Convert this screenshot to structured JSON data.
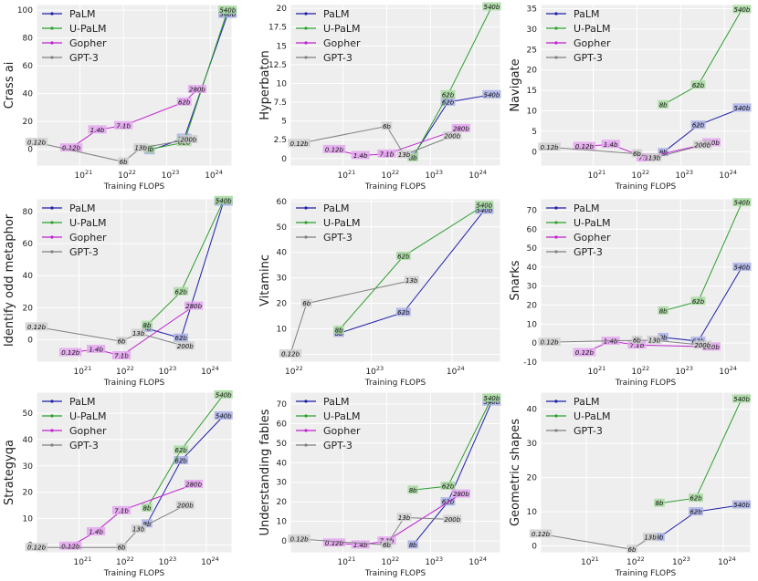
{
  "colors": {
    "PaLM": "#1f1fa8",
    "U-PaLM": "#2ca02c",
    "Gopher": "#c020d0",
    "GPT-3": "#808080"
  },
  "chart_data": [
    {
      "type": "line",
      "title": "",
      "ylabel": "Crass ai",
      "xlabel": "Training FLOPS",
      "xlim_log10": [
        20,
        24.5
      ],
      "ylim": [
        -12,
        104
      ],
      "yticks": [
        0,
        20,
        40,
        60,
        80,
        100
      ],
      "xticks_exp": [
        21,
        22,
        23,
        24
      ],
      "series": [
        {
          "name": "PaLM",
          "points": [
            {
              "x": 22.6,
              "y": -1,
              "label": "8b"
            },
            {
              "x": 23.4,
              "y": 8,
              "label": "62b"
            },
            {
              "x": 24.4,
              "y": 97,
              "label": "540b"
            }
          ]
        },
        {
          "name": "U-PaLM",
          "points": [
            {
              "x": 22.6,
              "y": 0,
              "label": "8b"
            },
            {
              "x": 23.4,
              "y": 5,
              "label": "62b"
            },
            {
              "x": 24.4,
              "y": 100,
              "label": "540b"
            }
          ]
        },
        {
          "name": "Gopher",
          "points": [
            {
              "x": 20.8,
              "y": 1,
              "label": "0.12b"
            },
            {
              "x": 21.4,
              "y": 14,
              "label": "1.4b"
            },
            {
              "x": 22.0,
              "y": 17,
              "label": "7.1b"
            },
            {
              "x": 23.4,
              "y": 34,
              "label": "62b"
            },
            {
              "x": 23.7,
              "y": 43,
              "label": "280b"
            }
          ]
        },
        {
          "name": "GPT-3",
          "points": [
            {
              "x": 20.0,
              "y": 5,
              "label": "0.12b"
            },
            {
              "x": 22.0,
              "y": -9,
              "label": "6b"
            },
            {
              "x": 22.4,
              "y": 1,
              "label": "13b"
            },
            {
              "x": 23.5,
              "y": 7,
              "label": "200b"
            }
          ]
        }
      ]
    },
    {
      "type": "line",
      "title": "",
      "ylabel": "Hyperbaton",
      "xlabel": "Training FLOPS",
      "xlim_log10": [
        19.8,
        24.6
      ],
      "ylim": [
        -1,
        20.5
      ],
      "yticks": [
        0.0,
        2.5,
        5.0,
        7.5,
        10.0,
        12.5,
        15.0,
        17.5,
        20.0
      ],
      "xticks_exp": [
        21,
        22,
        23,
        24
      ],
      "series": [
        {
          "name": "PaLM",
          "points": [
            {
              "x": 22.6,
              "y": 0.3,
              "label": "8b"
            },
            {
              "x": 23.4,
              "y": 7.5,
              "label": "62b"
            },
            {
              "x": 24.4,
              "y": 8.5,
              "label": "540b"
            }
          ]
        },
        {
          "name": "U-PaLM",
          "points": [
            {
              "x": 22.6,
              "y": 0.1,
              "label": "8b"
            },
            {
              "x": 23.4,
              "y": 8.5,
              "label": "62b"
            },
            {
              "x": 24.4,
              "y": 20.2,
              "label": "540b"
            }
          ]
        },
        {
          "name": "Gopher",
          "points": [
            {
              "x": 20.8,
              "y": 1.2,
              "label": "0.12b"
            },
            {
              "x": 21.4,
              "y": 0.4,
              "label": "1.4b"
            },
            {
              "x": 22.0,
              "y": 0.6,
              "label": "7.1b"
            },
            {
              "x": 23.7,
              "y": 4.0,
              "label": "280b"
            }
          ]
        },
        {
          "name": "GPT-3",
          "points": [
            {
              "x": 20.0,
              "y": 2.0,
              "label": "0.12b"
            },
            {
              "x": 22.0,
              "y": 4.3,
              "label": "6b"
            },
            {
              "x": 22.4,
              "y": 0.5,
              "label": "13b"
            },
            {
              "x": 23.5,
              "y": 3.0,
              "label": "200b"
            }
          ]
        }
      ]
    },
    {
      "type": "line",
      "title": "",
      "ylabel": "Navigate",
      "xlabel": "Training FLOPS",
      "xlim_log10": [
        19.8,
        24.6
      ],
      "ylim": [
        -3.5,
        36
      ],
      "yticks": [
        0,
        5,
        10,
        15,
        20,
        25,
        30,
        35
      ],
      "xticks_exp": [
        21,
        22,
        23,
        24
      ],
      "series": [
        {
          "name": "PaLM",
          "points": [
            {
              "x": 22.6,
              "y": -0.2,
              "label": "8b"
            },
            {
              "x": 23.4,
              "y": 6.5,
              "label": "62b"
            },
            {
              "x": 24.4,
              "y": 10.7,
              "label": "540b"
            }
          ]
        },
        {
          "name": "U-PaLM",
          "points": [
            {
              "x": 22.6,
              "y": 11.5,
              "label": "8b"
            },
            {
              "x": 23.4,
              "y": 16.3,
              "label": "62b"
            },
            {
              "x": 24.4,
              "y": 34.8,
              "label": "540b"
            }
          ]
        },
        {
          "name": "Gopher",
          "points": [
            {
              "x": 20.8,
              "y": 1.3,
              "label": "0.12b"
            },
            {
              "x": 21.4,
              "y": 1.8,
              "label": "1.4b"
            },
            {
              "x": 22.2,
              "y": -1.5,
              "label": "7.1b"
            },
            {
              "x": 23.7,
              "y": 2.2,
              "label": "280b"
            }
          ]
        },
        {
          "name": "GPT-3",
          "points": [
            {
              "x": 20.0,
              "y": 1.1,
              "label": "0.12b"
            },
            {
              "x": 22.0,
              "y": -0.5,
              "label": "6b"
            },
            {
              "x": 22.4,
              "y": -1.5,
              "label": "13b"
            },
            {
              "x": 23.5,
              "y": 1.6,
              "label": "200b"
            }
          ]
        }
      ]
    },
    {
      "type": "line",
      "title": "",
      "ylabel": "Identify odd metaphor",
      "xlabel": "Training FLOPS",
      "xlim_log10": [
        20.0,
        24.6
      ],
      "ylim": [
        -14,
        88
      ],
      "yticks": [
        0,
        20,
        40,
        60,
        80
      ],
      "xticks_exp": [
        21,
        22,
        23,
        24
      ],
      "series": [
        {
          "name": "PaLM",
          "points": [
            {
              "x": 22.6,
              "y": 7,
              "label": "8b"
            },
            {
              "x": 23.4,
              "y": 1,
              "label": "62b"
            },
            {
              "x": 24.4,
              "y": 86,
              "label": "540b"
            }
          ]
        },
        {
          "name": "U-PaLM",
          "points": [
            {
              "x": 22.6,
              "y": 9,
              "label": "8b"
            },
            {
              "x": 23.4,
              "y": 30,
              "label": "62b"
            },
            {
              "x": 24.4,
              "y": 87,
              "label": "540b"
            }
          ]
        },
        {
          "name": "Gopher",
          "points": [
            {
              "x": 20.8,
              "y": -8,
              "label": "0.12b"
            },
            {
              "x": 21.4,
              "y": -6,
              "label": "1.4b"
            },
            {
              "x": 22.0,
              "y": -10,
              "label": "7.1b"
            },
            {
              "x": 23.7,
              "y": 21,
              "label": "280b"
            }
          ]
        },
        {
          "name": "GPT-3",
          "points": [
            {
              "x": 20.0,
              "y": 8,
              "label": "0.12b"
            },
            {
              "x": 22.0,
              "y": -1,
              "label": "6b"
            },
            {
              "x": 22.4,
              "y": 4,
              "label": "13b"
            },
            {
              "x": 23.5,
              "y": -4,
              "label": "200b"
            }
          ]
        }
      ]
    },
    {
      "type": "line",
      "title": "",
      "ylabel": "Vitaminc",
      "xlabel": "Training FLOPS",
      "xlim_log10": [
        22.0,
        24.6
      ],
      "ylim": [
        -3,
        61
      ],
      "yticks": [
        0,
        10,
        20,
        30,
        40,
        50,
        60
      ],
      "xticks_exp": [
        22,
        23,
        24
      ],
      "series": [
        {
          "name": "PaLM",
          "points": [
            {
              "x": 22.6,
              "y": 8.3,
              "label": "8b"
            },
            {
              "x": 23.4,
              "y": 16.5,
              "label": "62b"
            },
            {
              "x": 24.4,
              "y": 56.5,
              "label": "540b"
            }
          ]
        },
        {
          "name": "U-PaLM",
          "points": [
            {
              "x": 22.6,
              "y": 9.5,
              "label": "8b"
            },
            {
              "x": 23.4,
              "y": 38.5,
              "label": "62b"
            },
            {
              "x": 24.4,
              "y": 58.5,
              "label": "540b"
            }
          ]
        },
        {
          "name": "GPT-3",
          "points": [
            {
              "x": 22.0,
              "y": 0.2,
              "label": "0.12b"
            },
            {
              "x": 22.2,
              "y": 20,
              "label": "6b"
            },
            {
              "x": 23.5,
              "y": 29,
              "label": "13b"
            }
          ]
        }
      ]
    },
    {
      "type": "line",
      "title": "",
      "ylabel": "Snarks",
      "xlabel": "Training FLOPS",
      "xlim_log10": [
        19.8,
        24.6
      ],
      "ylim": [
        -10,
        76
      ],
      "yticks": [
        -10,
        0,
        10,
        20,
        30,
        40,
        50,
        60,
        70
      ],
      "xticks_exp": [
        21,
        22,
        23,
        24
      ],
      "series": [
        {
          "name": "PaLM",
          "points": [
            {
              "x": 22.6,
              "y": 3,
              "label": "8b"
            },
            {
              "x": 23.4,
              "y": 1,
              "label": "62b"
            },
            {
              "x": 24.4,
              "y": 40,
              "label": "540b"
            }
          ]
        },
        {
          "name": "U-PaLM",
          "points": [
            {
              "x": 22.6,
              "y": 17,
              "label": "8b"
            },
            {
              "x": 23.4,
              "y": 22,
              "label": "62b"
            },
            {
              "x": 24.4,
              "y": 74,
              "label": "540b"
            }
          ]
        },
        {
          "name": "Gopher",
          "points": [
            {
              "x": 20.8,
              "y": -5,
              "label": "0.12b"
            },
            {
              "x": 21.4,
              "y": 1,
              "label": "1.4b"
            },
            {
              "x": 22.0,
              "y": -1,
              "label": "7.1b"
            },
            {
              "x": 23.7,
              "y": -2,
              "label": "280b"
            }
          ]
        },
        {
          "name": "GPT-3",
          "points": [
            {
              "x": 20.0,
              "y": 0.5,
              "label": "0.12b"
            },
            {
              "x": 22.0,
              "y": 1.5,
              "label": "6b"
            },
            {
              "x": 22.4,
              "y": 1.5,
              "label": "13b"
            },
            {
              "x": 23.5,
              "y": -1,
              "label": "200b"
            }
          ]
        }
      ]
    },
    {
      "type": "line",
      "title": "",
      "ylabel": "Strategyqa",
      "xlabel": "Training FLOPS",
      "xlim_log10": [
        20.0,
        24.6
      ],
      "ylim": [
        -3,
        58
      ],
      "yticks": [
        0,
        10,
        20,
        30,
        40,
        50
      ],
      "xticks_exp": [
        21,
        22,
        23,
        24
      ],
      "series": [
        {
          "name": "PaLM",
          "points": [
            {
              "x": 22.6,
              "y": 8,
              "label": "8b"
            },
            {
              "x": 23.4,
              "y": 32,
              "label": "62b"
            },
            {
              "x": 24.4,
              "y": 49,
              "label": "540b"
            }
          ]
        },
        {
          "name": "U-PaLM",
          "points": [
            {
              "x": 22.6,
              "y": 14,
              "label": "8b"
            },
            {
              "x": 23.4,
              "y": 36,
              "label": "62b"
            },
            {
              "x": 24.4,
              "y": 57,
              "label": "540b"
            }
          ]
        },
        {
          "name": "Gopher",
          "points": [
            {
              "x": 20.8,
              "y": -0.5,
              "label": "0.12b"
            },
            {
              "x": 21.4,
              "y": 5,
              "label": "1.4b"
            },
            {
              "x": 22.0,
              "y": 13,
              "label": "7.1b"
            },
            {
              "x": 23.7,
              "y": 23,
              "label": "280b"
            }
          ]
        },
        {
          "name": "GPT-3",
          "points": [
            {
              "x": 20.0,
              "y": -1,
              "label": "0.12b"
            },
            {
              "x": 22.0,
              "y": -1,
              "label": "6b"
            },
            {
              "x": 22.4,
              "y": 6,
              "label": "13b"
            },
            {
              "x": 23.5,
              "y": 15,
              "label": "200b"
            }
          ]
        }
      ]
    },
    {
      "type": "line",
      "title": "",
      "ylabel": "Understanding fables",
      "xlabel": "Training FLOPS",
      "xlim_log10": [
        19.8,
        24.6
      ],
      "ylim": [
        -6,
        76
      ],
      "yticks": [
        0,
        10,
        20,
        30,
        40,
        50,
        60,
        70
      ],
      "xticks_exp": [
        21,
        22,
        23,
        24
      ],
      "series": [
        {
          "name": "PaLM",
          "points": [
            {
              "x": 22.6,
              "y": -2,
              "label": "8b"
            },
            {
              "x": 23.4,
              "y": 20,
              "label": "62b"
            },
            {
              "x": 24.4,
              "y": 71,
              "label": "540b"
            }
          ]
        },
        {
          "name": "U-PaLM",
          "points": [
            {
              "x": 22.6,
              "y": 26,
              "label": "8b"
            },
            {
              "x": 23.4,
              "y": 28,
              "label": "62b"
            },
            {
              "x": 24.4,
              "y": 73,
              "label": "540b"
            }
          ]
        },
        {
          "name": "Gopher",
          "points": [
            {
              "x": 20.8,
              "y": -1,
              "label": "0.12b"
            },
            {
              "x": 21.4,
              "y": -2,
              "label": "1.4b"
            },
            {
              "x": 22.0,
              "y": 0,
              "label": "7.1b"
            },
            {
              "x": 23.7,
              "y": 24,
              "label": "280b"
            }
          ]
        },
        {
          "name": "GPT-3",
          "points": [
            {
              "x": 20.0,
              "y": 1,
              "label": "0.12b"
            },
            {
              "x": 22.0,
              "y": -2,
              "label": "6b"
            },
            {
              "x": 22.4,
              "y": 12,
              "label": "13b"
            },
            {
              "x": 23.5,
              "y": 11,
              "label": "200b"
            }
          ]
        }
      ]
    },
    {
      "type": "line",
      "title": "",
      "ylabel": "Geometric shapes",
      "xlabel": "Training FLOPS",
      "xlim_log10": [
        20.0,
        24.6
      ],
      "ylim": [
        -2,
        45
      ],
      "yticks": [
        0,
        10,
        20,
        30,
        40
      ],
      "xticks_exp": [
        21,
        22,
        23,
        24
      ],
      "series": [
        {
          "name": "PaLM",
          "points": [
            {
              "x": 22.6,
              "y": 2.5,
              "label": "8b"
            },
            {
              "x": 23.4,
              "y": 10,
              "label": "62b"
            },
            {
              "x": 24.4,
              "y": 12,
              "label": "540b"
            }
          ]
        },
        {
          "name": "U-PaLM",
          "points": [
            {
              "x": 22.6,
              "y": 12.5,
              "label": "8b"
            },
            {
              "x": 23.4,
              "y": 14,
              "label": "62b"
            },
            {
              "x": 24.4,
              "y": 43,
              "label": "540b"
            }
          ]
        },
        {
          "name": "GPT-3",
          "points": [
            {
              "x": 20.0,
              "y": 3.5,
              "label": "0.12b"
            },
            {
              "x": 22.0,
              "y": -1,
              "label": "6b"
            },
            {
              "x": 22.4,
              "y": 2.5,
              "label": "13b"
            }
          ]
        }
      ]
    }
  ]
}
